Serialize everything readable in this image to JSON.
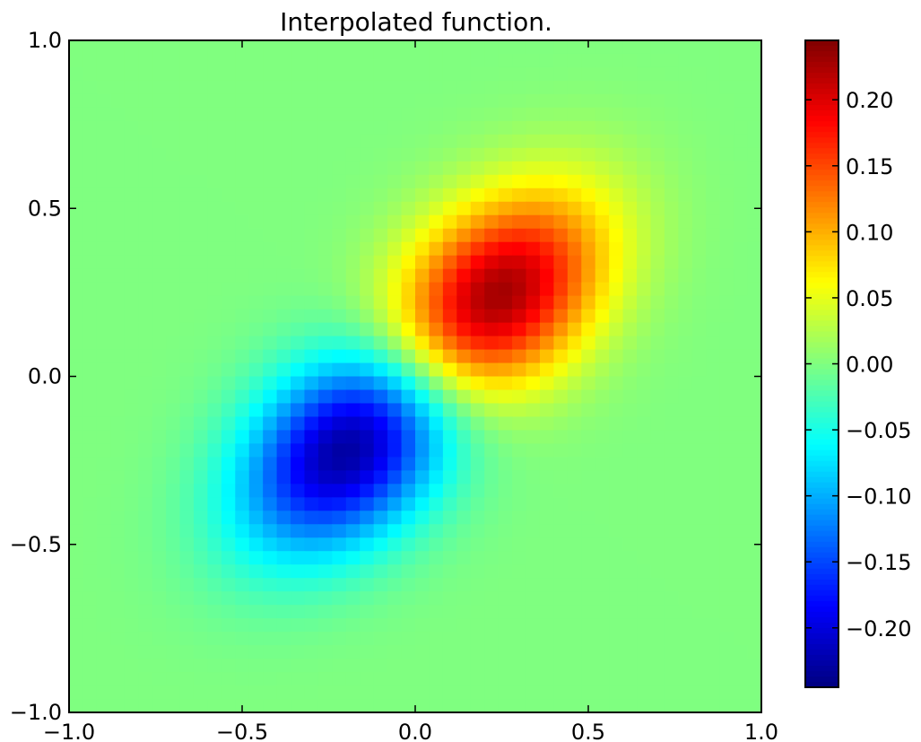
{
  "chart_data": {
    "type": "heatmap",
    "title": "Interpolated function.",
    "xlabel": "",
    "ylabel": "",
    "xlim": [
      -1.0,
      1.0
    ],
    "ylim": [
      -1.0,
      1.0
    ],
    "x_ticks": [
      -1.0,
      -0.5,
      0.0,
      0.5,
      1.0
    ],
    "x_tick_labels": [
      "−1.0",
      "−0.5",
      "0.0",
      "0.5",
      "1.0"
    ],
    "y_ticks": [
      -1.0,
      -0.5,
      0.0,
      0.5,
      1.0
    ],
    "y_tick_labels": [
      "−1.0",
      "−0.5",
      "0.0",
      "0.5",
      "1.0"
    ],
    "grid": false,
    "colormap": "jet",
    "colorbar": {
      "vmin": -0.245,
      "vmax": 0.245,
      "ticks": [
        -0.2,
        -0.15,
        -0.1,
        -0.05,
        0.0,
        0.05,
        0.1,
        0.15,
        0.2
      ],
      "tick_labels": [
        "−0.20",
        "−0.15",
        "−0.10",
        "−0.05",
        "0.00",
        "0.05",
        "0.10",
        "0.15",
        "0.20"
      ]
    },
    "grid_resolution": [
      50,
      50
    ],
    "features": [
      {
        "kind": "maximum",
        "x": 0.22,
        "y": 0.22,
        "value": 0.245
      },
      {
        "kind": "minimum",
        "x": -0.18,
        "y": -0.2,
        "value": -0.245
      }
    ]
  }
}
